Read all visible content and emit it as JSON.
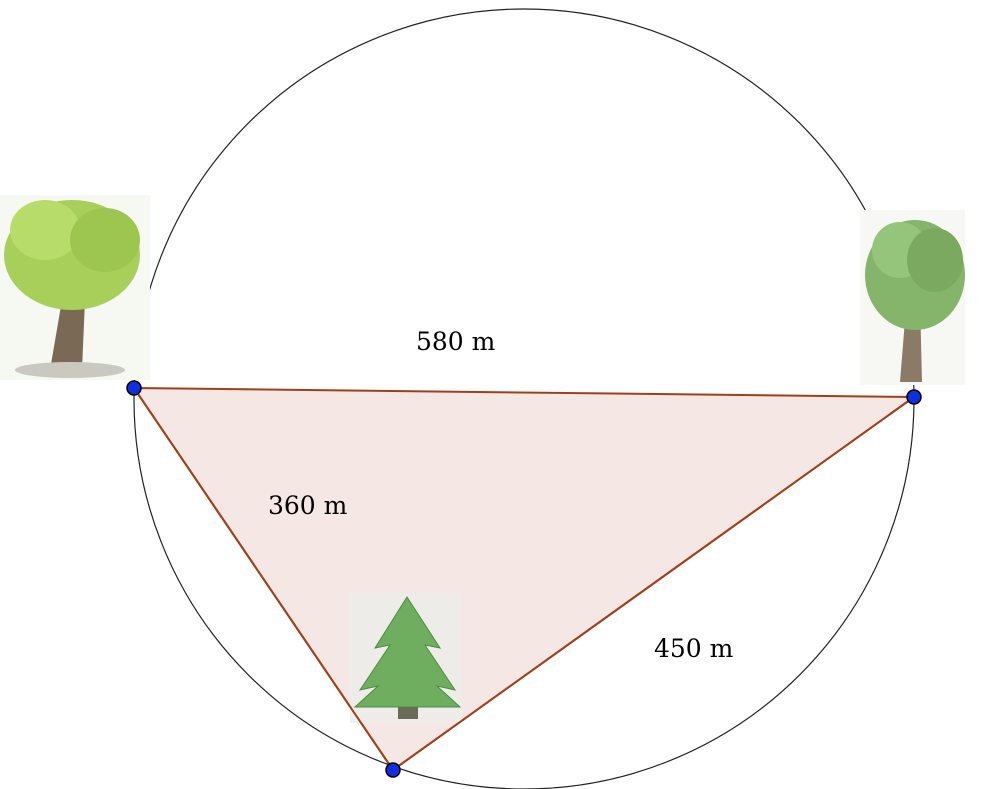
{
  "edges": [
    {
      "label": "580 m"
    },
    {
      "label": "360 m"
    },
    {
      "label": "450 m"
    }
  ]
}
